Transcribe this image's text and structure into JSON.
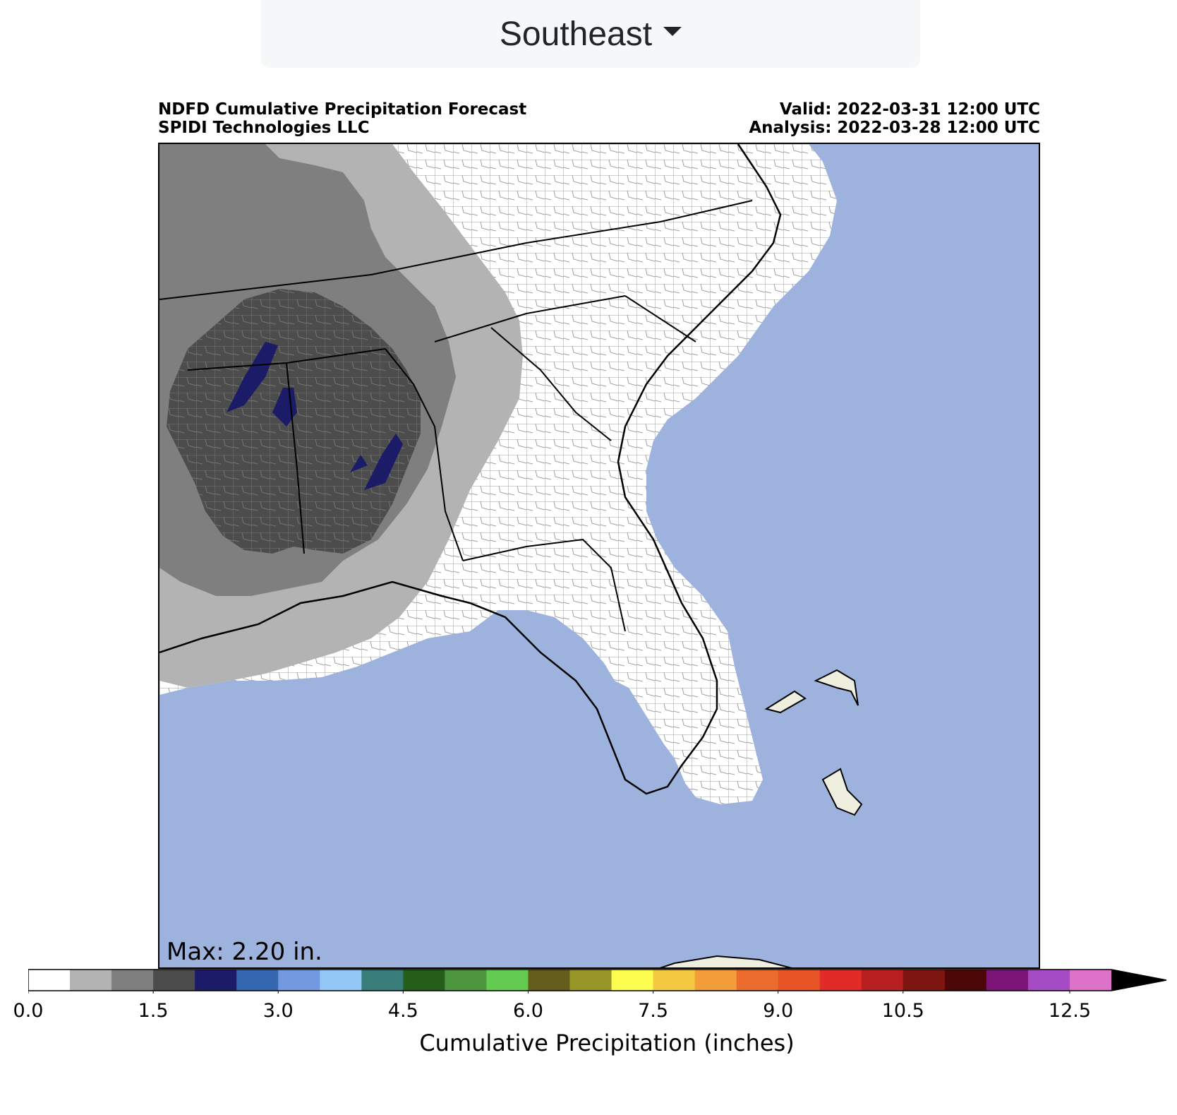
{
  "region_selector": {
    "label": "Southeast",
    "icon": "caret-down-icon"
  },
  "header": {
    "title": "NDFD Cumulative Precipitation Forecast",
    "credit": "SPIDI Technologies LLC",
    "valid": "Valid: 2022-03-31 12:00 UTC",
    "analysis": "Analysis: 2022-03-28 12:00 UTC"
  },
  "map": {
    "max_label": "Max: 2.20 in.",
    "colors": {
      "ocean": "#9db3dd",
      "land": "#ffffff",
      "foreign_land": "#efefe0",
      "borders": "#000000",
      "counties": "#888888"
    }
  },
  "colorbar": {
    "title": "Cumulative Precipitation (inches)",
    "extend": "max",
    "boundaries": [
      0,
      0.5,
      1,
      1.5,
      2,
      2.5,
      3,
      3.5,
      4,
      4.5,
      5,
      5.5,
      6,
      6.5,
      7,
      7.5,
      8,
      8.5,
      9,
      9.5,
      10,
      10.5,
      11,
      11.5,
      12,
      12.5,
      13
    ],
    "colors": [
      "#ffffff",
      "#b3b3b3",
      "#7f7f7f",
      "#4c4c4c",
      "#1b1b68",
      "#3566b0",
      "#7399e0",
      "#92c6f5",
      "#397d7a",
      "#245e18",
      "#4e9540",
      "#63cc50",
      "#645e1a",
      "#999628",
      "#fdfd50",
      "#f5c842",
      "#f29c3a",
      "#ec6c2d",
      "#e95426",
      "#e22b26",
      "#b82020",
      "#7d1511",
      "#4e0707",
      "#7d1478",
      "#a54bc4",
      "#db72c8"
    ],
    "extend_color": "#000000",
    "ticks": [
      0.0,
      1.5,
      3.0,
      4.5,
      6.0,
      7.5,
      9.0,
      10.5,
      12.5
    ],
    "tick_labels": [
      "0.0",
      "1.5",
      "3.0",
      "4.5",
      "6.0",
      "7.5",
      "9.0",
      "10.5",
      "12.5"
    ]
  }
}
